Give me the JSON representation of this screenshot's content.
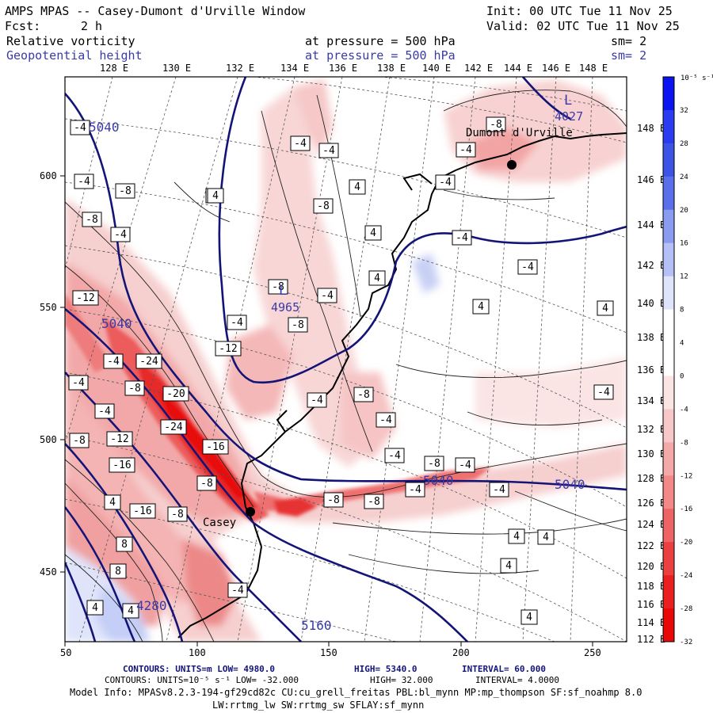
{
  "header": {
    "title": "AMPS MPAS -- Casey-Dumont d'Urville Window",
    "init": "Init: 00 UTC Tue 11 Nov 25",
    "fcst_label": "Fcst:",
    "fcst_value": "2 h",
    "valid": "Valid: 02 UTC Tue 11 Nov 25",
    "field1_name": "Relative vorticity",
    "field1_pressure": "at pressure =  500 hPa",
    "field1_sm": "sm= 2",
    "field2_name": "Geopotential height",
    "field2_pressure": "at pressure =  500 hPa",
    "field2_sm": "sm= 2"
  },
  "colors": {
    "dark_blue": "#1a1a8c",
    "height_contour": "#141478",
    "label_blue": "#3a3aa8",
    "coast": "#000000"
  },
  "map": {
    "lon_labels": [
      "128 E",
      "130 E",
      "132 E",
      "134 E",
      "136 E",
      "138 E",
      "140 E",
      "142 E",
      "144 E",
      "146 E",
      "148 E"
    ],
    "right_lon_labels": [
      "148 E",
      "146 E",
      "144 E",
      "142 E",
      "140 E",
      "138 E",
      "136 E",
      "134 E",
      "132 E",
      "130 E",
      "128 E",
      "126 E",
      "124 E",
      "122 E",
      "120 E",
      "118 E",
      "116 E",
      "114 E",
      "112 E"
    ],
    "x_ticks": [
      "50",
      "100",
      "150",
      "200",
      "250"
    ],
    "y_ticks": [
      "600",
      "550",
      "500",
      "450"
    ],
    "places": {
      "casey": "Casey",
      "dumont": "Dumont d'Urville"
    },
    "height_labels": [
      "5040",
      "5040",
      "5040",
      "5040",
      "4965",
      "4027",
      "5160",
      "4280"
    ],
    "low_markers": [
      "L",
      "L"
    ],
    "vort_labels": [
      "-4",
      "-4",
      "-8",
      "-8",
      "-4",
      "-4",
      "-4",
      "4",
      "4",
      "-8",
      "-4",
      "4",
      "-4",
      "4",
      "-4",
      "-4",
      "4",
      "4",
      "4",
      "-12",
      "-8",
      "-4",
      "-8",
      "-4",
      "-12",
      "-4",
      "-24",
      "-8",
      "-20",
      "-8",
      "-4",
      "-24",
      "-8",
      "-12",
      "-16",
      "-16",
      "-8",
      "-4",
      "-4",
      "-8",
      "-4",
      "-4",
      "-4",
      "-8",
      "-4",
      "4",
      "-4",
      "-16",
      "-8",
      "-8",
      "4",
      "8",
      "4",
      "4",
      "8",
      "4",
      "-8",
      "4",
      "-4",
      "-4",
      "4",
      "4",
      "4",
      "-4",
      "-8",
      "-8",
      "4",
      "-4",
      "-4"
    ]
  },
  "colorbar": {
    "unit": "10⁻⁵ s⁻¹",
    "labels": [
      "32",
      "28",
      "24",
      "20",
      "16",
      "12",
      "8",
      "4",
      "0",
      "-4",
      "-8",
      "-12",
      "-16",
      "-20",
      "-24",
      "-28",
      "-32"
    ],
    "colors": [
      "#0a14f0",
      "#2a3cf0",
      "#3c54e6",
      "#5a70ea",
      "#8a9cf0",
      "#b4c0f6",
      "#dfe4fa",
      "#ffffff",
      "#ffffff",
      "#fbe4e4",
      "#f8c8c8",
      "#f4a8a8",
      "#f28888",
      "#ee6464",
      "#ec4040",
      "#ea2020",
      "#e80808"
    ]
  },
  "footer": {
    "line1_a": "CONTOURS:  UNITS=m  LOW=  4980.0",
    "line1_b": "HIGH=  5340.0",
    "line1_c": "INTERVAL=  60.000",
    "line2_a": "CONTOURS:  UNITS=10⁻⁵ s⁻¹  LOW= -32.000",
    "line2_b": "HIGH=  32.000",
    "line2_c": "INTERVAL=  4.0000",
    "line3": "Model Info: MPASv8.2.3-194-gf29cd82c CU:cu_grell_freitas PBL:bl_mynn MP:mp_thompson SF:sf_noahmp 8.0",
    "line4": "LW:rrtmg_lw SW:rrtmg_sw SFLAY:sf_mynn"
  }
}
